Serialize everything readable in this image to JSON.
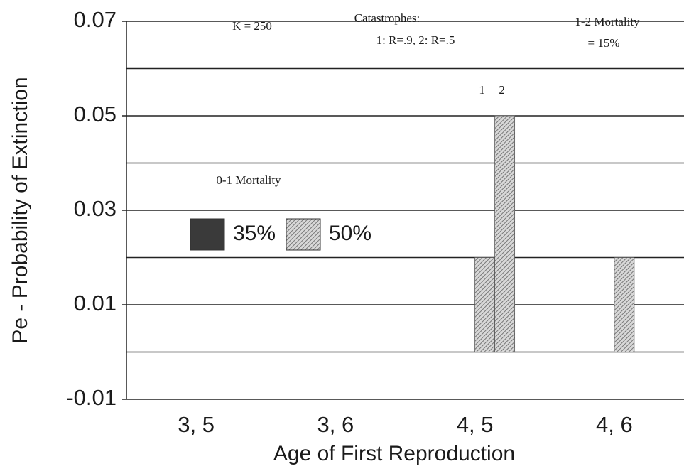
{
  "chart_data": {
    "type": "bar",
    "ylabel": "Pe - Probability of Extinction",
    "xlabel": "Age of First Reproduction",
    "categories": [
      "3, 5",
      "3, 6",
      "4, 5",
      "4, 6"
    ],
    "series": [
      {
        "name": "1",
        "color": "#8a8a8a",
        "values": [
          null,
          null,
          0.02,
          0.02
        ]
      },
      {
        "name": "2",
        "color": "#8a8a8a",
        "values": [
          null,
          null,
          0.05,
          null
        ]
      }
    ],
    "legend_title": "0-1 Mortality",
    "legend": [
      {
        "label": "35%",
        "color": "#3a3a3a"
      },
      {
        "label": "50%",
        "color": "#8a8a8a"
      }
    ],
    "annotations": [
      "K = 250",
      "Catastrophes:",
      "1: R=.9,  2: R=.5",
      "1-2 Mortality",
      "= 15%"
    ],
    "ylim": [
      -0.01,
      0.07
    ],
    "yticks": [
      -0.01,
      0.01,
      0.03,
      0.05,
      0.07
    ],
    "minor_yticks": [
      0,
      0.02,
      0.04,
      0.06
    ],
    "grid": true
  }
}
